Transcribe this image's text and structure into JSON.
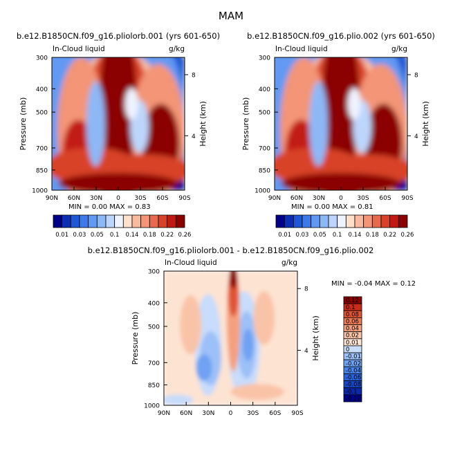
{
  "main_title": "MAM",
  "colors": {
    "panel_top_scale": [
      "#00008b",
      "#0b2fb0",
      "#1f58d6",
      "#3c79ea",
      "#6299f2",
      "#8db8f6",
      "#bcd6fb",
      "#eef3ff",
      "#ffe0cc",
      "#f9bba0",
      "#f39576",
      "#e86a4c",
      "#d84228",
      "#c21a12",
      "#8b0000"
    ],
    "panel_diff_scale": [
      "#00008b",
      "#0a28a8",
      "#1746c6",
      "#2a64dc",
      "#4883ea",
      "#6fa1f2",
      "#9cc0f8",
      "#c8dcfb",
      "#fde3d2",
      "#f9c3a7",
      "#f4a07f",
      "#ec7a57",
      "#e05535",
      "#c82c18",
      "#8b0000"
    ]
  },
  "chart_data": [
    {
      "type": "heatmap",
      "title": "b.e12.B1850CN.f09_g16.pliolorb.001 (yrs 601-650)",
      "subtitle_left": "In-Cloud liquid",
      "subtitle_right": "g/kg",
      "ylabel": "Pressure (mb)",
      "ylabel_right": "Height (km)",
      "x_ticks": [
        "90N",
        "60N",
        "30N",
        "0",
        "30S",
        "60S",
        "90S"
      ],
      "y_ticks": [
        "300",
        "400",
        "500",
        "700",
        "850",
        "1000"
      ],
      "y_right_ticks": [
        "8",
        "4"
      ],
      "stats": {
        "min_label": "MIN =",
        "min": "0.00",
        "max_label": "MAX =",
        "max": "0.83"
      },
      "colorbar_labels": [
        "0.01",
        "0.03",
        "0.05",
        "0.1",
        "0.14",
        "0.18",
        "0.22",
        "0.26"
      ]
    },
    {
      "type": "heatmap",
      "title": "b.e12.B1850CN.f09_g16.plio.002 (yrs 601-650)",
      "subtitle_left": "In-Cloud liquid",
      "subtitle_right": "g/kg",
      "ylabel": "Pressure (mb)",
      "ylabel_right": "Height (km)",
      "x_ticks": [
        "90N",
        "60N",
        "30N",
        "0",
        "30S",
        "60S",
        "90S"
      ],
      "y_ticks": [
        "300",
        "400",
        "500",
        "700",
        "850",
        "1000"
      ],
      "y_right_ticks": [
        "8",
        "4"
      ],
      "stats": {
        "min_label": "MIN =",
        "min": "0.00",
        "max_label": "MAX =",
        "max": "0.81"
      },
      "colorbar_labels": [
        "0.01",
        "0.03",
        "0.05",
        "0.1",
        "0.14",
        "0.18",
        "0.22",
        "0.26"
      ]
    },
    {
      "type": "heatmap",
      "title": "b.e12.B1850CN.f09_g16.pliolorb.001 - b.e12.B1850CN.f09_g16.plio.002",
      "subtitle_left": "In-Cloud liquid",
      "subtitle_right": "g/kg",
      "ylabel": "Pressure (mb)",
      "ylabel_right": "Height (km)",
      "x_ticks": [
        "90N",
        "60N",
        "30N",
        "0",
        "30S",
        "60S",
        "90S"
      ],
      "y_ticks": [
        "300",
        "400",
        "500",
        "700",
        "850",
        "1000"
      ],
      "y_right_ticks": [
        "8",
        "4"
      ],
      "stats": {
        "min_label": "MIN =",
        "min": "-0.04",
        "max_label": "MAX =",
        "max": "0.12"
      },
      "colorbar_labels": [
        "0.12",
        "0.1",
        "0.08",
        "0.06",
        "0.04",
        "0.02",
        "0.01",
        "0",
        "-0.01",
        "-0.02",
        "-0.04",
        "-0.06",
        "-0.08",
        "-0.1",
        "-0.12"
      ]
    }
  ]
}
